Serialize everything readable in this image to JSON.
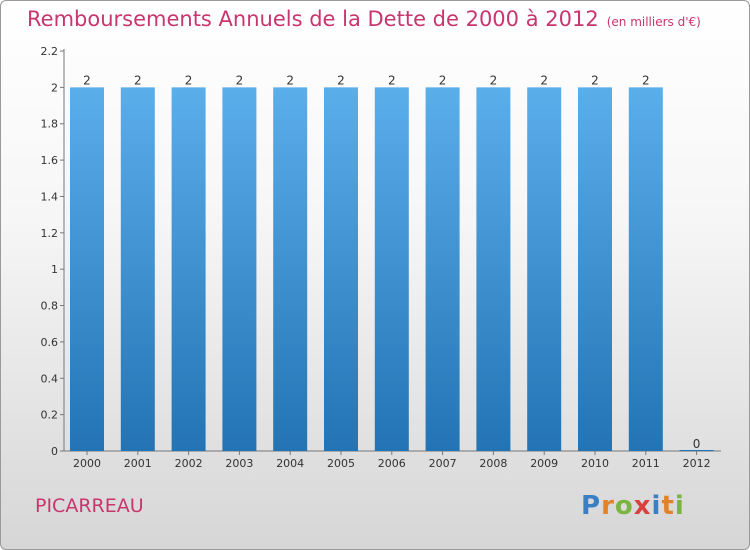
{
  "title": "Remboursements Annuels de la Dette de 2000 à 2012",
  "unit": "(en milliers d'€)",
  "commune": "PICARREAU",
  "brand": "Proxiti",
  "colors": {
    "title": "#c8366e",
    "bar_top": "#5aaeea",
    "bar_bottom": "#2374b4"
  },
  "chart_data": {
    "type": "bar",
    "categories": [
      "2000",
      "2001",
      "2002",
      "2003",
      "2004",
      "2005",
      "2006",
      "2007",
      "2008",
      "2009",
      "2010",
      "2011",
      "2012"
    ],
    "values": [
      2,
      2,
      2,
      2,
      2,
      2,
      2,
      2,
      2,
      2,
      2,
      2,
      0
    ],
    "value_labels": [
      "2",
      "2",
      "2",
      "2",
      "2",
      "2",
      "2",
      "2",
      "2",
      "2",
      "2",
      "2",
      "0"
    ],
    "ylim": [
      0,
      2.2
    ],
    "yticks": [
      "0",
      "0.2",
      "0.4",
      "0.6",
      "0.8",
      "1",
      "1.2",
      "1.4",
      "1.6",
      "1.8",
      "2",
      "2.2"
    ],
    "grid": false
  }
}
